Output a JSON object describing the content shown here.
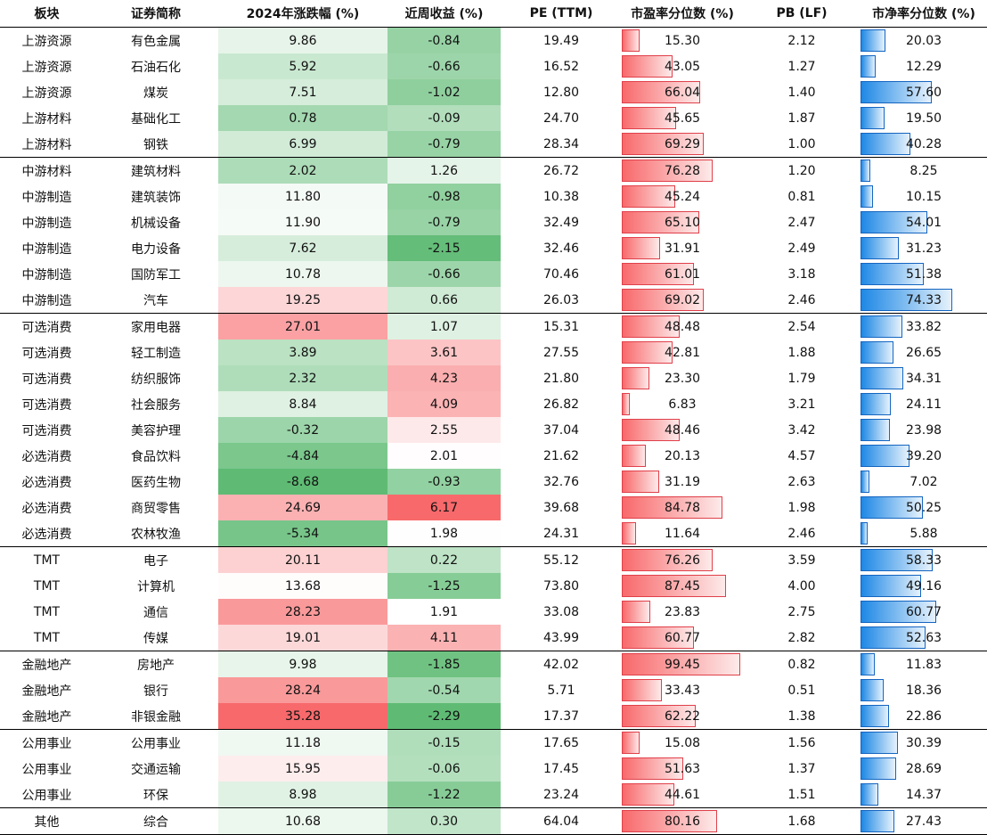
{
  "colors": {
    "negative_max": "#5fbb74",
    "neutral": "#ffffff",
    "positive_max": "#f8696b",
    "pe_bar": "#f8696b",
    "pb_bar": "#1e88e5"
  },
  "headers": [
    "板块",
    "证券简称",
    "2024年涨跌幅 (%)",
    "近周收益 (%)",
    "PE (TTM)",
    "市盈率分位数 (%)",
    "PB (LF)",
    "市净率分位数 (%)"
  ],
  "chart_data": {
    "type": "table",
    "columns": [
      "板块",
      "证券简称",
      "2024年涨跌幅 (%)",
      "近周收益 (%)",
      "PE (TTM)",
      "市盈率分位数 (%)",
      "PB (LF)",
      "市净率分位数 (%)"
    ],
    "rows": [
      {
        "sector": "上游资源",
        "name": "有色金属",
        "ytd": "9.86",
        "week": "-0.84",
        "pe": "19.49",
        "pe_pct": "15.30",
        "pb": "2.12",
        "pb_pct": "20.03"
      },
      {
        "sector": "上游资源",
        "name": "石油石化",
        "ytd": "5.92",
        "week": "-0.66",
        "pe": "16.52",
        "pe_pct": "43.05",
        "pb": "1.27",
        "pb_pct": "12.29"
      },
      {
        "sector": "上游资源",
        "name": "煤炭",
        "ytd": "7.51",
        "week": "-1.02",
        "pe": "12.80",
        "pe_pct": "66.04",
        "pb": "1.40",
        "pb_pct": "57.60"
      },
      {
        "sector": "上游材料",
        "name": "基础化工",
        "ytd": "0.78",
        "week": "-0.09",
        "pe": "24.70",
        "pe_pct": "45.65",
        "pb": "1.87",
        "pb_pct": "19.50"
      },
      {
        "sector": "上游材料",
        "name": "钢铁",
        "ytd": "6.99",
        "week": "-0.79",
        "pe": "28.34",
        "pe_pct": "69.29",
        "pb": "1.00",
        "pb_pct": "40.28",
        "group_end": true
      },
      {
        "sector": "中游材料",
        "name": "建筑材料",
        "ytd": "2.02",
        "week": "1.26",
        "pe": "26.72",
        "pe_pct": "76.28",
        "pb": "1.20",
        "pb_pct": "8.25"
      },
      {
        "sector": "中游制造",
        "name": "建筑装饰",
        "ytd": "11.80",
        "week": "-0.98",
        "pe": "10.38",
        "pe_pct": "45.24",
        "pb": "0.81",
        "pb_pct": "10.15"
      },
      {
        "sector": "中游制造",
        "name": "机械设备",
        "ytd": "11.90",
        "week": "-0.79",
        "pe": "32.49",
        "pe_pct": "65.10",
        "pb": "2.47",
        "pb_pct": "54.01"
      },
      {
        "sector": "中游制造",
        "name": "电力设备",
        "ytd": "7.62",
        "week": "-2.15",
        "pe": "32.46",
        "pe_pct": "31.91",
        "pb": "2.49",
        "pb_pct": "31.23"
      },
      {
        "sector": "中游制造",
        "name": "国防军工",
        "ytd": "10.78",
        "week": "-0.66",
        "pe": "70.46",
        "pe_pct": "61.01",
        "pb": "3.18",
        "pb_pct": "51.38"
      },
      {
        "sector": "中游制造",
        "name": "汽车",
        "ytd": "19.25",
        "week": "0.66",
        "pe": "26.03",
        "pe_pct": "69.02",
        "pb": "2.46",
        "pb_pct": "74.33",
        "group_end": true
      },
      {
        "sector": "可选消费",
        "name": "家用电器",
        "ytd": "27.01",
        "week": "1.07",
        "pe": "15.31",
        "pe_pct": "48.48",
        "pb": "2.54",
        "pb_pct": "33.82"
      },
      {
        "sector": "可选消费",
        "name": "轻工制造",
        "ytd": "3.89",
        "week": "3.61",
        "pe": "27.55",
        "pe_pct": "42.81",
        "pb": "1.88",
        "pb_pct": "26.65"
      },
      {
        "sector": "可选消费",
        "name": "纺织服饰",
        "ytd": "2.32",
        "week": "4.23",
        "pe": "21.80",
        "pe_pct": "23.30",
        "pb": "1.79",
        "pb_pct": "34.31"
      },
      {
        "sector": "可选消费",
        "name": "社会服务",
        "ytd": "8.84",
        "week": "4.09",
        "pe": "26.82",
        "pe_pct": "6.83",
        "pb": "3.21",
        "pb_pct": "24.11"
      },
      {
        "sector": "可选消费",
        "name": "美容护理",
        "ytd": "-0.32",
        "week": "2.55",
        "pe": "37.04",
        "pe_pct": "48.46",
        "pb": "3.42",
        "pb_pct": "23.98"
      },
      {
        "sector": "必选消费",
        "name": "食品饮料",
        "ytd": "-4.84",
        "week": "2.01",
        "pe": "21.62",
        "pe_pct": "20.13",
        "pb": "4.57",
        "pb_pct": "39.20"
      },
      {
        "sector": "必选消费",
        "name": "医药生物",
        "ytd": "-8.68",
        "week": "-0.93",
        "pe": "32.76",
        "pe_pct": "31.19",
        "pb": "2.63",
        "pb_pct": "7.02"
      },
      {
        "sector": "必选消费",
        "name": "商贸零售",
        "ytd": "24.69",
        "week": "6.17",
        "pe": "39.68",
        "pe_pct": "84.78",
        "pb": "1.98",
        "pb_pct": "50.25"
      },
      {
        "sector": "必选消费",
        "name": "农林牧渔",
        "ytd": "-5.34",
        "week": "1.98",
        "pe": "24.31",
        "pe_pct": "11.64",
        "pb": "2.46",
        "pb_pct": "5.88",
        "group_end": true
      },
      {
        "sector": "TMT",
        "name": "电子",
        "ytd": "20.11",
        "week": "0.22",
        "pe": "55.12",
        "pe_pct": "76.26",
        "pb": "3.59",
        "pb_pct": "58.33"
      },
      {
        "sector": "TMT",
        "name": "计算机",
        "ytd": "13.68",
        "week": "-1.25",
        "pe": "73.80",
        "pe_pct": "87.45",
        "pb": "4.00",
        "pb_pct": "49.16"
      },
      {
        "sector": "TMT",
        "name": "通信",
        "ytd": "28.23",
        "week": "1.91",
        "pe": "33.08",
        "pe_pct": "23.83",
        "pb": "2.75",
        "pb_pct": "60.77"
      },
      {
        "sector": "TMT",
        "name": "传媒",
        "ytd": "19.01",
        "week": "4.11",
        "pe": "43.99",
        "pe_pct": "60.77",
        "pb": "2.82",
        "pb_pct": "52.63",
        "group_end": true
      },
      {
        "sector": "金融地产",
        "name": "房地产",
        "ytd": "9.98",
        "week": "-1.85",
        "pe": "42.02",
        "pe_pct": "99.45",
        "pb": "0.82",
        "pb_pct": "11.83"
      },
      {
        "sector": "金融地产",
        "name": "银行",
        "ytd": "28.24",
        "week": "-0.54",
        "pe": "5.71",
        "pe_pct": "33.43",
        "pb": "0.51",
        "pb_pct": "18.36"
      },
      {
        "sector": "金融地产",
        "name": "非银金融",
        "ytd": "35.28",
        "week": "-2.29",
        "pe": "17.37",
        "pe_pct": "62.22",
        "pb": "1.38",
        "pb_pct": "22.86",
        "group_end": true
      },
      {
        "sector": "公用事业",
        "name": "公用事业",
        "ytd": "11.18",
        "week": "-0.15",
        "pe": "17.65",
        "pe_pct": "15.08",
        "pb": "1.56",
        "pb_pct": "30.39"
      },
      {
        "sector": "公用事业",
        "name": "交通运输",
        "ytd": "15.95",
        "week": "-0.06",
        "pe": "17.45",
        "pe_pct": "51.63",
        "pb": "1.37",
        "pb_pct": "28.69"
      },
      {
        "sector": "公用事业",
        "name": "环保",
        "ytd": "8.98",
        "week": "-1.22",
        "pe": "23.24",
        "pe_pct": "44.61",
        "pb": "1.51",
        "pb_pct": "14.37",
        "group_end": true
      },
      {
        "sector": "其他",
        "name": "综合",
        "ytd": "10.68",
        "week": "0.30",
        "pe": "64.04",
        "pe_pct": "80.16",
        "pb": "1.68",
        "pb_pct": "27.43",
        "group_end": true
      }
    ]
  }
}
